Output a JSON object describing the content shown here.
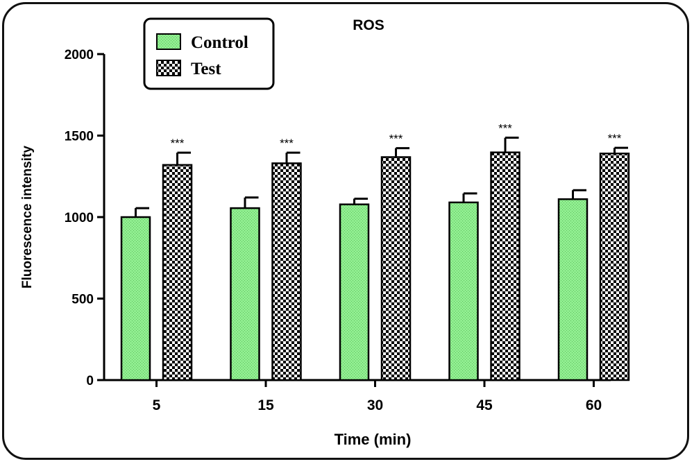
{
  "chart_data": {
    "type": "bar",
    "title": "ROS",
    "xlabel": "Time (min)",
    "ylabel": "Fluorescence intensity",
    "categories": [
      "5",
      "15",
      "30",
      "45",
      "60"
    ],
    "ylim": [
      0,
      2000
    ],
    "yticks": [
      0,
      500,
      1000,
      1500,
      2000
    ],
    "legend_position": "top-left",
    "series": [
      {
        "name": "Control",
        "color": "#90ee90",
        "pattern": "dotted-fill",
        "values": [
          1000,
          1055,
          1078,
          1090,
          1110
        ],
        "errors": [
          55,
          65,
          35,
          55,
          55
        ]
      },
      {
        "name": "Test",
        "color": "#000000",
        "pattern": "checkerboard",
        "values": [
          1320,
          1330,
          1368,
          1397,
          1390
        ],
        "errors": [
          75,
          65,
          55,
          90,
          35
        ]
      }
    ],
    "annotations": [
      "***",
      "***",
      "***",
      "***",
      "***"
    ]
  }
}
